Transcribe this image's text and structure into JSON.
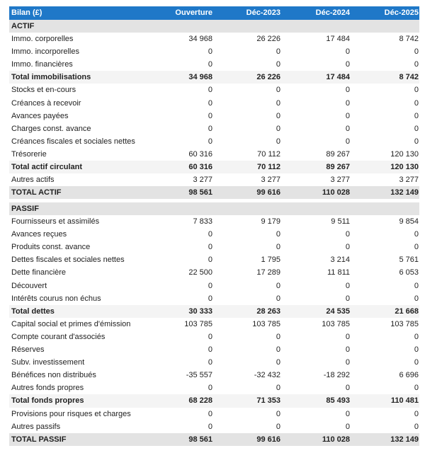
{
  "header": {
    "title": "Bilan (£)",
    "columns": [
      "Ouverture",
      "Déc-2023",
      "Déc-2024",
      "Déc-2025"
    ]
  },
  "colors": {
    "header_bg": "#1f78c8",
    "section_bg": "#e3e3e3",
    "total_bg": "#f4f4f4"
  },
  "actif": [
    {
      "label": "ACTIF",
      "type": "section",
      "values": []
    },
    {
      "label": "Immo. corporelles",
      "type": "normal",
      "values": [
        "34 968",
        "26 226",
        "17 484",
        "8 742"
      ]
    },
    {
      "label": "Immo. incorporelles",
      "type": "normal",
      "values": [
        "0",
        "0",
        "0",
        "0"
      ]
    },
    {
      "label": "Immo. financières",
      "type": "normal",
      "values": [
        "0",
        "0",
        "0",
        "0"
      ]
    },
    {
      "label": "Total immobilisations",
      "type": "total",
      "values": [
        "34 968",
        "26 226",
        "17 484",
        "8 742"
      ]
    },
    {
      "label": "Stocks et en-cours",
      "type": "normal",
      "values": [
        "0",
        "0",
        "0",
        "0"
      ]
    },
    {
      "label": "Créances à recevoir",
      "type": "normal",
      "values": [
        "0",
        "0",
        "0",
        "0"
      ]
    },
    {
      "label": "Avances payées",
      "type": "normal",
      "values": [
        "0",
        "0",
        "0",
        "0"
      ]
    },
    {
      "label": "Charges const. avance",
      "type": "normal",
      "values": [
        "0",
        "0",
        "0",
        "0"
      ]
    },
    {
      "label": "Créances fiscales et sociales nettes",
      "type": "normal",
      "values": [
        "0",
        "0",
        "0",
        "0"
      ]
    },
    {
      "label": "Trésorerie",
      "type": "normal",
      "values": [
        "60 316",
        "70 112",
        "89 267",
        "120 130"
      ]
    },
    {
      "label": "Total actif circulant",
      "type": "total",
      "values": [
        "60 316",
        "70 112",
        "89 267",
        "120 130"
      ]
    },
    {
      "label": "Autres actifs",
      "type": "normal",
      "values": [
        "3 277",
        "3 277",
        "3 277",
        "3 277"
      ]
    },
    {
      "label": "TOTAL ACTIF",
      "type": "grand",
      "values": [
        "98 561",
        "99 616",
        "110 028",
        "132 149"
      ]
    }
  ],
  "passif": [
    {
      "label": "PASSIF",
      "type": "section",
      "values": []
    },
    {
      "label": "Fournisseurs et assimilés",
      "type": "normal",
      "values": [
        "7 833",
        "9 179",
        "9 511",
        "9 854"
      ]
    },
    {
      "label": "Avances reçues",
      "type": "normal",
      "values": [
        "0",
        "0",
        "0",
        "0"
      ]
    },
    {
      "label": "Produits const. avance",
      "type": "normal",
      "values": [
        "0",
        "0",
        "0",
        "0"
      ]
    },
    {
      "label": "Dettes fiscales et sociales nettes",
      "type": "normal",
      "values": [
        "0",
        "1 795",
        "3 214",
        "5 761"
      ]
    },
    {
      "label": "Dette financière",
      "type": "normal",
      "values": [
        "22 500",
        "17 289",
        "11 811",
        "6 053"
      ]
    },
    {
      "label": "Découvert",
      "type": "normal",
      "values": [
        "0",
        "0",
        "0",
        "0"
      ]
    },
    {
      "label": "Intérêts courus non échus",
      "type": "normal",
      "values": [
        "0",
        "0",
        "0",
        "0"
      ]
    },
    {
      "label": "Total dettes",
      "type": "total",
      "values": [
        "30 333",
        "28 263",
        "24 535",
        "21 668"
      ]
    },
    {
      "label": "Capital social et primes d'émission",
      "type": "normal",
      "values": [
        "103 785",
        "103 785",
        "103 785",
        "103 785"
      ]
    },
    {
      "label": "Compte courant d'associés",
      "type": "normal",
      "values": [
        "0",
        "0",
        "0",
        "0"
      ]
    },
    {
      "label": "Réserves",
      "type": "normal",
      "values": [
        "0",
        "0",
        "0",
        "0"
      ]
    },
    {
      "label": "Subv. investissement",
      "type": "normal",
      "values": [
        "0",
        "0",
        "0",
        "0"
      ]
    },
    {
      "label": "Bénéfices non distribués",
      "type": "normal",
      "values": [
        "-35 557",
        "-32 432",
        "-18 292",
        "6 696"
      ]
    },
    {
      "label": "Autres fonds propres",
      "type": "normal",
      "values": [
        "0",
        "0",
        "0",
        "0"
      ]
    },
    {
      "label": "Total fonds propres",
      "type": "total",
      "values": [
        "68 228",
        "71 353",
        "85 493",
        "110 481"
      ]
    },
    {
      "label": "Provisions pour risques et charges",
      "type": "normal",
      "values": [
        "0",
        "0",
        "0",
        "0"
      ]
    },
    {
      "label": "Autres passifs",
      "type": "normal",
      "values": [
        "0",
        "0",
        "0",
        "0"
      ]
    },
    {
      "label": "TOTAL PASSIF",
      "type": "grand",
      "values": [
        "98 561",
        "99 616",
        "110 028",
        "132 149"
      ]
    }
  ]
}
